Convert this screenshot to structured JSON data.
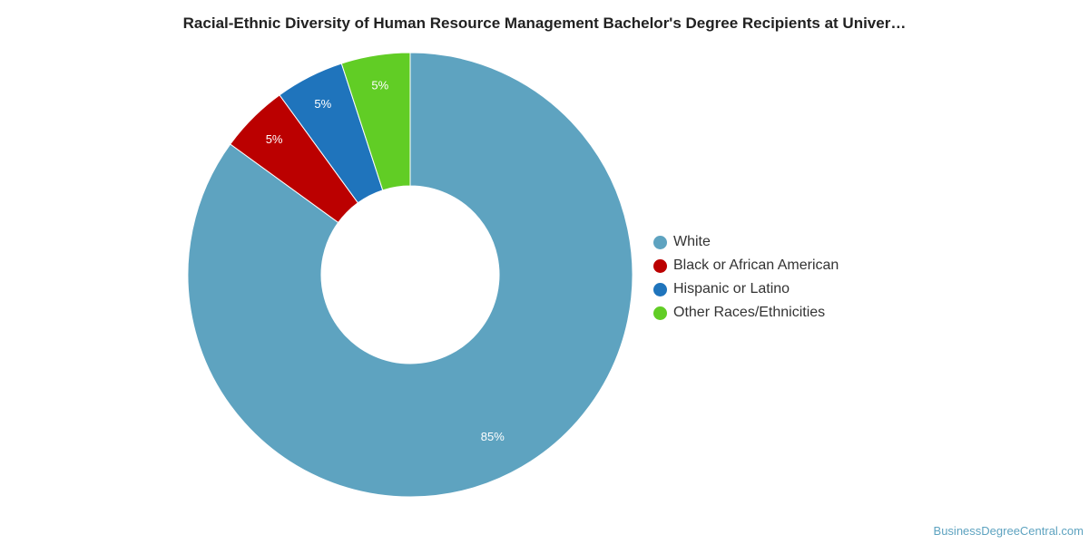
{
  "chart_data": {
    "type": "pie",
    "variant": "donut",
    "title": "Racial-Ethnic Diversity of Human Resource Management Bachelor's Degree Recipients at Univer…",
    "legend_position": "right",
    "categories": [
      "White",
      "Black or African American",
      "Hispanic or Latino",
      "Other Races/Ethnicities"
    ],
    "values": [
      85,
      5,
      5,
      5
    ],
    "labels": [
      "85%",
      "5%",
      "5%",
      "5%"
    ],
    "colors": [
      "#5ea3c0",
      "#bb0000",
      "#1f74bc",
      "#61cd25"
    ]
  },
  "watermark": "BusinessDegreeCentral.com"
}
